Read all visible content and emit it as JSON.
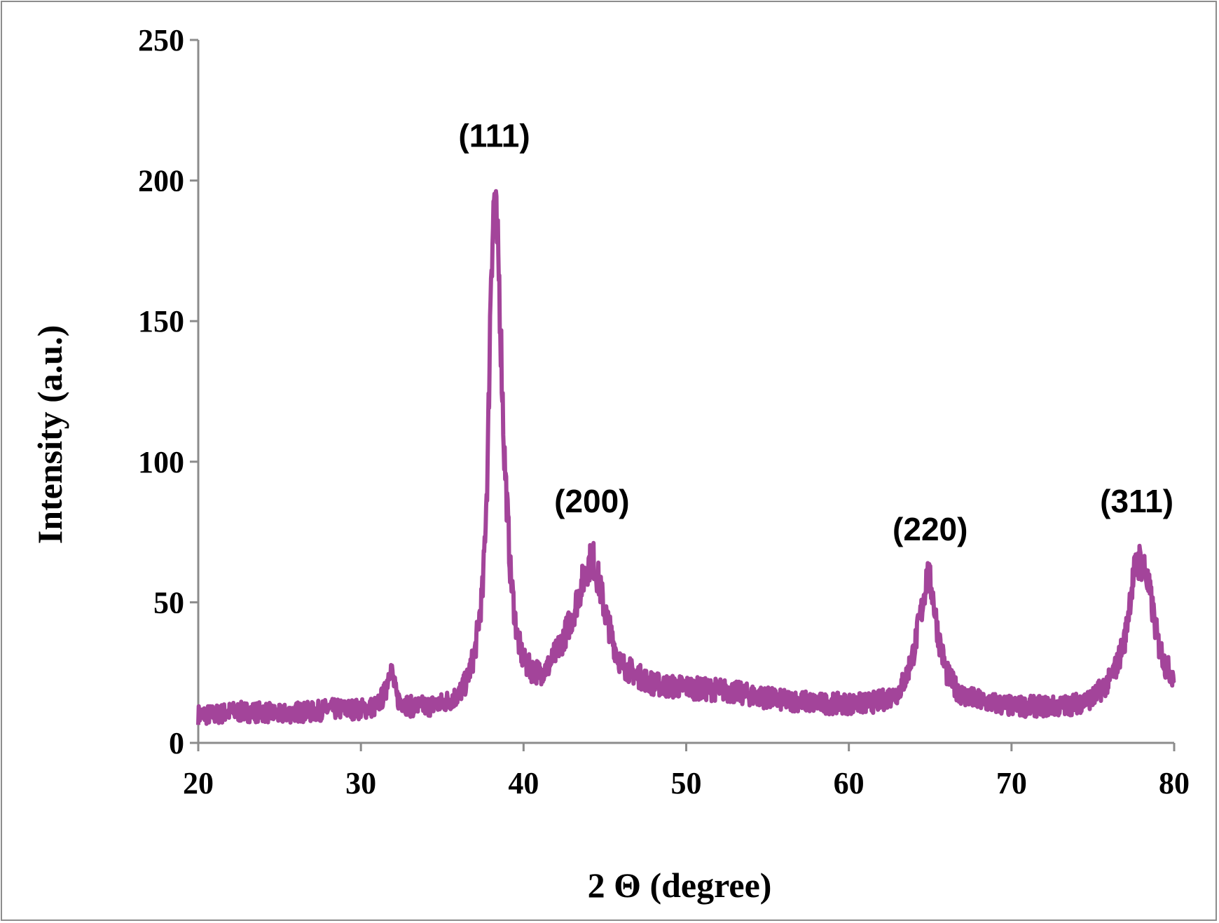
{
  "chart_data": {
    "type": "line",
    "xlabel": "2 Θ (degree)",
    "ylabel": "Intensity (a.u.)",
    "xlim": [
      20,
      80
    ],
    "ylim": [
      0,
      250
    ],
    "xticks": [
      20,
      30,
      40,
      50,
      60,
      70,
      80
    ],
    "yticks": [
      0,
      50,
      100,
      150,
      200,
      250
    ],
    "grid": false,
    "line_color": "#a3449a",
    "series": [
      {
        "x": [
          20,
          21,
          22,
          23,
          24,
          25,
          26,
          27,
          28,
          29,
          30,
          31,
          31.5,
          31.8,
          32.2,
          33,
          34,
          35,
          36,
          36.5,
          37,
          37.5,
          37.8,
          38.0,
          38.2,
          38.5,
          38.8,
          39.2,
          39.6,
          40,
          40.5,
          41,
          41.5,
          42,
          42.5,
          43,
          43.5,
          44.0,
          44.3,
          44.6,
          45,
          45.5,
          46,
          47,
          48,
          49,
          50,
          51,
          52,
          53,
          54,
          55,
          56,
          57,
          58,
          59,
          60,
          61,
          62,
          63,
          63.5,
          64,
          64.5,
          64.8,
          65.1,
          65.5,
          66,
          66.5,
          67,
          68,
          69,
          70,
          71,
          72,
          73,
          74,
          75,
          75.5,
          76,
          76.5,
          77,
          77.3,
          77.6,
          77.9,
          78.2,
          78.6,
          79,
          79.5,
          80
        ],
        "y": [
          10,
          10,
          11,
          11,
          11,
          10,
          11,
          11,
          12,
          12,
          12,
          13,
          18,
          28,
          16,
          13,
          13,
          14,
          17,
          22,
          32,
          55,
          100,
          170,
          195,
          165,
          105,
          60,
          38,
          29,
          26,
          25,
          27,
          32,
          38,
          45,
          55,
          64,
          65,
          58,
          47,
          36,
          28,
          24,
          21,
          20,
          20,
          19,
          19,
          18,
          17,
          16,
          15,
          15,
          14,
          14,
          14,
          14,
          15,
          18,
          23,
          33,
          48,
          60,
          55,
          38,
          25,
          20,
          17,
          15,
          14,
          13,
          13,
          13,
          13,
          14,
          16,
          19,
          22,
          28,
          38,
          52,
          62,
          65,
          62,
          50,
          36,
          27,
          24
        ]
      }
    ],
    "annotations": [
      {
        "text": "(111)",
        "x": 38.2,
        "y": 212
      },
      {
        "text": "(200)",
        "x": 44.2,
        "y": 82
      },
      {
        "text": "(220)",
        "x": 65.0,
        "y": 72
      },
      {
        "text": "(311)",
        "x": 77.7,
        "y": 82
      }
    ]
  }
}
